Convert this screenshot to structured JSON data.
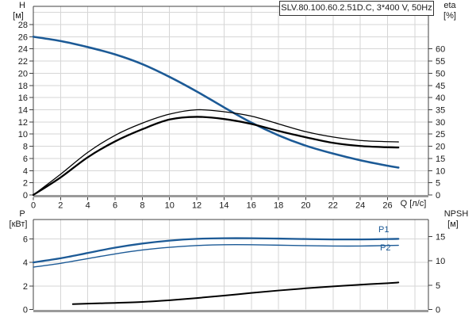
{
  "labels": {
    "title": "SLV.80.100.60.2.51D.C, 3*400 V, 50Hz",
    "h_title": "H",
    "h_unit": "[м]",
    "eta_title": "eta",
    "eta_unit": "[%]",
    "q_title": "Q [л/с]",
    "p_title": "P",
    "p_unit": "[кВт]",
    "npsh_title": "NPSH",
    "npsh_unit": "[м]",
    "p1": "P1",
    "p2": "P2"
  },
  "colors": {
    "curve_blue": "#1c5a96",
    "curve_black": "#000000",
    "grid": "#d6d6d6",
    "axis": "#404040",
    "baseline_gray": "#9a9a9a",
    "text": "#1a1a1a"
  },
  "chart_data": [
    {
      "type": "line",
      "title": "SLV.80.100.60.2.51D.C, 3*400 V, 50Hz",
      "xlabel": "Q [л/с]",
      "x_range": [
        0,
        29
      ],
      "x_ticks": [
        0,
        2,
        4,
        6,
        8,
        10,
        12,
        14,
        16,
        18,
        20,
        22,
        24,
        26
      ],
      "grid": true,
      "left_axis": {
        "label": "H [м]",
        "range": [
          0,
          31
        ],
        "ticks": [
          0,
          2,
          4,
          6,
          8,
          10,
          12,
          14,
          16,
          18,
          20,
          22,
          24,
          26,
          28
        ]
      },
      "right_axis": {
        "label": "eta [%]",
        "range": [
          0,
          77.5
        ],
        "ticks": [
          0,
          5,
          10,
          15,
          20,
          25,
          30,
          35,
          40,
          45,
          50,
          55,
          60
        ]
      },
      "series": [
        {
          "name": "head-curve",
          "axis": "left",
          "color": "#1c5a96",
          "width": 2.6,
          "x": [
            0,
            2,
            4,
            6,
            8,
            10,
            12,
            14,
            16,
            18,
            20,
            22,
            24,
            26,
            26.8
          ],
          "y": [
            26.0,
            25.3,
            24.3,
            23.1,
            21.5,
            19.4,
            17.0,
            14.4,
            11.9,
            9.8,
            8.1,
            6.8,
            5.7,
            4.8,
            4.5
          ]
        },
        {
          "name": "eta-pump-curve",
          "axis": "right",
          "color": "#000000",
          "width": 1.3,
          "x": [
            0,
            2,
            4,
            6,
            8,
            10,
            12,
            14,
            16,
            18,
            20,
            22,
            24,
            26,
            26.8
          ],
          "y": [
            0,
            8.5,
            17.5,
            24.5,
            29.5,
            33.2,
            35.0,
            34.2,
            32.4,
            29.2,
            26.0,
            23.8,
            22.4,
            21.9,
            21.8
          ]
        },
        {
          "name": "eta-total-curve",
          "axis": "right",
          "color": "#000000",
          "width": 2.3,
          "x": [
            0,
            2,
            4,
            6,
            8,
            10,
            12,
            14,
            16,
            18,
            20,
            22,
            24,
            26,
            26.8
          ],
          "y": [
            0,
            7.2,
            15.5,
            22.0,
            27.0,
            31.0,
            32.1,
            31.2,
            29.2,
            26.3,
            23.7,
            21.4,
            20.1,
            19.6,
            19.5
          ]
        }
      ]
    },
    {
      "type": "line",
      "xlabel": "Q [л/с]",
      "x_range": [
        0,
        29
      ],
      "x_ticks": [],
      "grid": true,
      "left_axis": {
        "label": "P [кВт]",
        "range": [
          0,
          7.64
        ],
        "ticks": [
          0,
          2,
          4,
          6
        ]
      },
      "right_axis": {
        "label": "NPSH [м]",
        "range": [
          0,
          18.49
        ],
        "ticks": [
          0,
          5,
          10,
          15
        ]
      },
      "series": [
        {
          "name": "p1-curve",
          "label": "P1",
          "axis": "left",
          "color": "#1c5a96",
          "width": 2.3,
          "x": [
            0,
            2,
            4,
            6,
            8,
            10,
            12,
            14,
            16,
            18,
            20,
            22,
            24,
            26,
            26.8
          ],
          "y": [
            4.0,
            4.35,
            4.8,
            5.25,
            5.6,
            5.85,
            6.0,
            6.05,
            6.05,
            6.02,
            5.98,
            5.95,
            5.95,
            5.98,
            6.0
          ]
        },
        {
          "name": "p2-curve",
          "label": "P2",
          "axis": "left",
          "color": "#1c5a96",
          "width": 1.4,
          "x": [
            0,
            2,
            4,
            6,
            8,
            10,
            12,
            14,
            16,
            18,
            20,
            22,
            24,
            26,
            26.8
          ],
          "y": [
            3.6,
            3.92,
            4.32,
            4.72,
            5.05,
            5.28,
            5.43,
            5.5,
            5.5,
            5.46,
            5.42,
            5.39,
            5.39,
            5.43,
            5.45
          ]
        },
        {
          "name": "npsh-curve",
          "axis": "right",
          "color": "#000000",
          "width": 2.0,
          "x": [
            2.9,
            4,
            6,
            8,
            10,
            12,
            14,
            16,
            18,
            20,
            22,
            24,
            26,
            26.8
          ],
          "y": [
            1.1,
            1.2,
            1.35,
            1.55,
            1.9,
            2.35,
            2.85,
            3.4,
            3.9,
            4.35,
            4.75,
            5.1,
            5.4,
            5.55
          ]
        }
      ]
    }
  ]
}
